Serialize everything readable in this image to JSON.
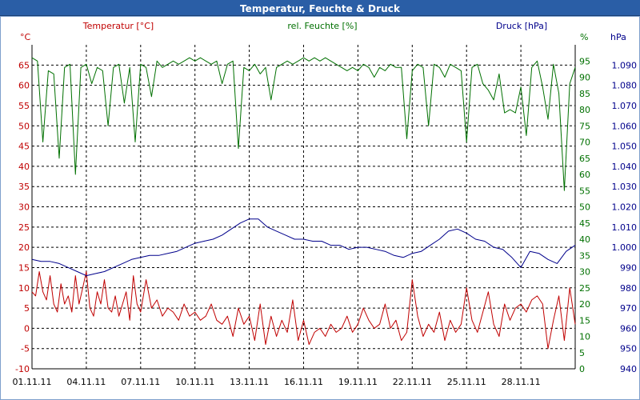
{
  "window": {
    "title": "Temperatur, Feuchte & Druck"
  },
  "colors": {
    "temperature": "#c00000",
    "humidity": "#007000",
    "pressure": "#00008b",
    "grid": "#000000",
    "titlebar": "#2a5ea6"
  },
  "chart_data": {
    "type": "line",
    "title": "Temperatur, Feuchte & Druck",
    "grid": true,
    "x_tick_labels": [
      "01.11.11",
      "04.11.11",
      "07.11.11",
      "10.11.11",
      "13.11.11",
      "16.11.11",
      "19.11.11",
      "22.11.11",
      "25.11.11",
      "28.11.11"
    ],
    "x_range_days": [
      1,
      31
    ],
    "axes": {
      "temperature": {
        "label": "Temperatur [°C]",
        "unit": "°C",
        "range": [
          -10,
          70
        ],
        "ticks": [
          -10,
          -5,
          0,
          5,
          10,
          15,
          20,
          25,
          30,
          35,
          40,
          45,
          50,
          55,
          60,
          65
        ]
      },
      "humidity": {
        "label": "rel. Feuchte [%]",
        "unit": "%",
        "range": [
          0,
          100
        ],
        "ticks": [
          0,
          5,
          10,
          15,
          20,
          25,
          30,
          35,
          40,
          45,
          50,
          55,
          60,
          65,
          70,
          75,
          80,
          85,
          90,
          95
        ]
      },
      "pressure": {
        "label": "Druck [hPa]",
        "unit": "hPa",
        "range": [
          940,
          1100
        ],
        "ticks": [
          "940",
          "950",
          "960",
          "970",
          "980",
          "990",
          "1.000",
          "1.010",
          "1.020",
          "1.030",
          "1.040",
          "1.050",
          "1.060",
          "1.070",
          "1.080",
          "1.090"
        ]
      }
    },
    "series": [
      {
        "name": "Temperatur",
        "axis": "temperature",
        "color": "#c00000",
        "x": [
          1.0,
          1.2,
          1.4,
          1.6,
          1.8,
          2.0,
          2.2,
          2.4,
          2.6,
          2.8,
          3.0,
          3.2,
          3.4,
          3.6,
          3.8,
          4.0,
          4.2,
          4.4,
          4.6,
          4.8,
          5.0,
          5.2,
          5.4,
          5.6,
          5.8,
          6.0,
          6.2,
          6.4,
          6.6,
          6.8,
          7.0,
          7.3,
          7.6,
          7.9,
          8.2,
          8.5,
          8.8,
          9.1,
          9.4,
          9.7,
          10.0,
          10.3,
          10.6,
          10.9,
          11.2,
          11.5,
          11.8,
          12.1,
          12.4,
          12.7,
          13.0,
          13.3,
          13.6,
          13.9,
          14.2,
          14.5,
          14.8,
          15.1,
          15.4,
          15.7,
          16.0,
          16.3,
          16.6,
          16.9,
          17.2,
          17.5,
          17.8,
          18.1,
          18.4,
          18.7,
          19.0,
          19.3,
          19.6,
          19.9,
          20.2,
          20.5,
          20.8,
          21.1,
          21.4,
          21.7,
          22.0,
          22.3,
          22.6,
          22.9,
          23.2,
          23.5,
          23.8,
          24.1,
          24.4,
          24.7,
          25.0,
          25.3,
          25.6,
          25.9,
          26.2,
          26.5,
          26.8,
          27.1,
          27.4,
          27.7,
          28.0,
          28.3,
          28.6,
          28.9,
          29.2,
          29.5,
          29.8,
          30.1,
          30.4,
          30.7,
          31.0
        ],
        "values": [
          9,
          8,
          14,
          9,
          7,
          13,
          6,
          4,
          11,
          6,
          8,
          4,
          13,
          6,
          10,
          14,
          5,
          3,
          9,
          6,
          12,
          5,
          4,
          8,
          3,
          6,
          9,
          2,
          13,
          6,
          4,
          12,
          5,
          7,
          3,
          5,
          4,
          2,
          6,
          3,
          4,
          2,
          3,
          6,
          2,
          1,
          3,
          -2,
          5,
          1,
          3,
          -3,
          6,
          -4,
          3,
          -2,
          2,
          -1,
          7,
          -3,
          2,
          -4,
          -1,
          0,
          -2,
          1,
          -1,
          0,
          3,
          -1,
          1,
          5,
          2,
          0,
          1,
          6,
          0,
          2,
          -3,
          -1,
          12,
          3,
          -2,
          1,
          -1,
          4,
          -3,
          2,
          -1,
          1,
          10,
          2,
          -1,
          4,
          9,
          1,
          -2,
          6,
          2,
          5,
          6,
          4,
          7,
          8,
          6,
          -5,
          2,
          8,
          -3,
          10,
          1
        ]
      },
      {
        "name": "rel. Feuchte",
        "axis": "humidity",
        "color": "#007000",
        "x": [
          1.0,
          1.3,
          1.6,
          1.9,
          2.2,
          2.5,
          2.8,
          3.1,
          3.4,
          3.7,
          4.0,
          4.3,
          4.6,
          4.9,
          5.2,
          5.5,
          5.8,
          6.1,
          6.4,
          6.7,
          7.0,
          7.3,
          7.6,
          7.9,
          8.2,
          8.5,
          8.8,
          9.1,
          9.4,
          9.7,
          10.0,
          10.3,
          10.6,
          10.9,
          11.2,
          11.5,
          11.8,
          12.1,
          12.4,
          12.7,
          13.0,
          13.3,
          13.6,
          13.9,
          14.2,
          14.5,
          14.8,
          15.1,
          15.4,
          15.7,
          16.0,
          16.3,
          16.6,
          16.9,
          17.2,
          17.5,
          17.8,
          18.1,
          18.4,
          18.7,
          19.0,
          19.3,
          19.6,
          19.9,
          20.2,
          20.5,
          20.8,
          21.1,
          21.4,
          21.7,
          22.0,
          22.3,
          22.6,
          22.9,
          23.2,
          23.5,
          23.8,
          24.1,
          24.4,
          24.7,
          25.0,
          25.3,
          25.6,
          25.9,
          26.2,
          26.5,
          26.8,
          27.1,
          27.4,
          27.7,
          28.0,
          28.3,
          28.6,
          28.9,
          29.2,
          29.5,
          29.8,
          30.1,
          30.4,
          30.7,
          31.0
        ],
        "values": [
          96,
          95,
          70,
          92,
          91,
          65,
          93,
          94,
          60,
          93,
          94,
          88,
          93,
          92,
          75,
          93,
          94,
          82,
          93,
          70,
          94,
          93,
          84,
          95,
          93,
          94,
          95,
          94,
          95,
          96,
          95,
          96,
          95,
          94,
          95,
          88,
          94,
          95,
          68,
          93,
          92,
          94,
          91,
          93,
          83,
          93,
          94,
          95,
          94,
          95,
          96,
          95,
          96,
          95,
          96,
          95,
          94,
          93,
          92,
          93,
          92,
          94,
          93,
          90,
          93,
          92,
          94,
          93,
          93,
          71,
          92,
          94,
          93,
          75,
          94,
          93,
          90,
          94,
          93,
          92,
          70,
          93,
          94,
          88,
          86,
          83,
          91,
          79,
          80,
          79,
          87,
          72,
          93,
          95,
          87,
          77,
          94,
          85,
          55,
          88,
          93
        ]
      },
      {
        "name": "Druck",
        "axis": "pressure",
        "color": "#00008b",
        "x": [
          1.0,
          1.5,
          2.0,
          2.5,
          3.0,
          3.5,
          4.0,
          4.5,
          5.0,
          5.5,
          6.0,
          6.5,
          7.0,
          7.5,
          8.0,
          8.5,
          9.0,
          9.5,
          10.0,
          10.5,
          11.0,
          11.5,
          12.0,
          12.5,
          13.0,
          13.5,
          14.0,
          14.5,
          15.0,
          15.5,
          16.0,
          16.5,
          17.0,
          17.5,
          18.0,
          18.5,
          19.0,
          19.5,
          20.0,
          20.5,
          21.0,
          21.5,
          22.0,
          22.5,
          23.0,
          23.5,
          24.0,
          24.5,
          25.0,
          25.5,
          26.0,
          26.5,
          27.0,
          27.5,
          28.0,
          28.5,
          29.0,
          29.5,
          30.0,
          30.5,
          31.0
        ],
        "values": [
          994,
          993,
          993,
          992,
          990,
          988,
          986,
          987,
          988,
          990,
          992,
          994,
          995,
          996,
          996,
          997,
          998,
          1000,
          1002,
          1003,
          1004,
          1006,
          1009,
          1012,
          1014,
          1014,
          1010,
          1008,
          1006,
          1004,
          1004,
          1003,
          1003,
          1001,
          1001,
          999,
          1000,
          1000,
          999,
          998,
          996,
          995,
          997,
          998,
          1001,
          1004,
          1008,
          1009,
          1007,
          1004,
          1003,
          1000,
          999,
          995,
          990,
          998,
          997,
          994,
          992,
          998,
          1001
        ]
      }
    ]
  }
}
